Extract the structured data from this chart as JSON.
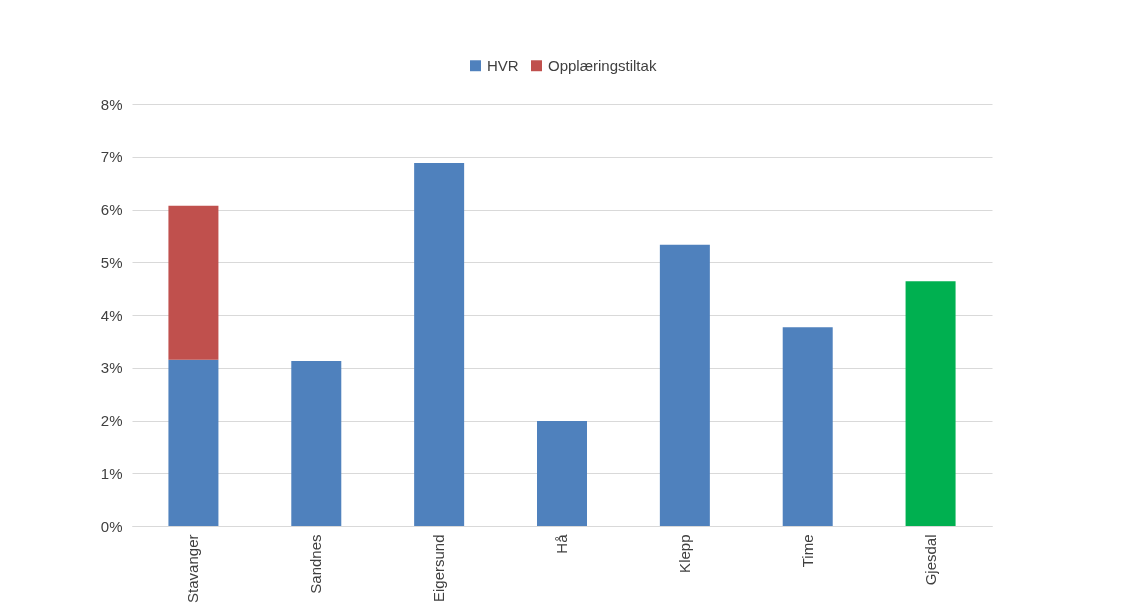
{
  "chart_data": {
    "type": "bar",
    "stacked": true,
    "categories": [
      "Stavanger",
      "Sandnes",
      "Eigersund",
      "Hå",
      "Klepp",
      "Time",
      "Gjesdal"
    ],
    "series": [
      {
        "name": "HVR",
        "color": "#4f81bd",
        "colors": [
          "#4f81bd",
          "#4f81bd",
          "#4f81bd",
          "#4f81bd",
          "#4f81bd",
          "#4f81bd",
          "#00b050"
        ],
        "values": [
          3.15,
          3.13,
          6.88,
          1.99,
          5.33,
          3.77,
          4.64
        ]
      },
      {
        "name": "Opplæringstiltak",
        "color": "#c0504d",
        "values": [
          2.92,
          null,
          null,
          null,
          null,
          null,
          null
        ]
      }
    ],
    "ylim": [
      0,
      8
    ],
    "yticks": [
      {
        "value": 0,
        "label": "0%"
      },
      {
        "value": 1,
        "label": "1%"
      },
      {
        "value": 2,
        "label": "2%"
      },
      {
        "value": 3,
        "label": "3%"
      },
      {
        "value": 4,
        "label": "4%"
      },
      {
        "value": 5,
        "label": "5%"
      },
      {
        "value": 6,
        "label": "6%"
      },
      {
        "value": 7,
        "label": "7%"
      },
      {
        "value": 8,
        "label": "8%"
      }
    ],
    "grid": "y",
    "legend": "top"
  }
}
